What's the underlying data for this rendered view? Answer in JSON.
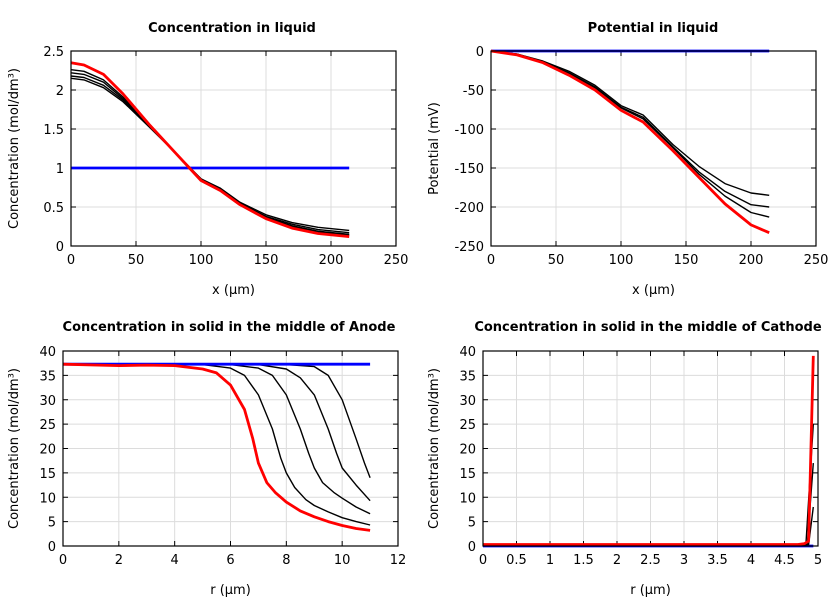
{
  "chart_data": [
    {
      "type": "line",
      "title": "Concentration in liquid",
      "xlabel": "x (µm)",
      "ylabel": "Concentration (mol/dm³)",
      "xlim": [
        0,
        250
      ],
      "ylim": [
        0,
        2.5
      ],
      "xticks": [
        "0",
        "50",
        "100",
        "150",
        "200",
        "250"
      ],
      "yticks": [
        "0",
        "0.5",
        "1",
        "1.5",
        "2",
        "2.5"
      ],
      "grid": true,
      "series": [
        {
          "color": "#000000",
          "points": [
            [
              0,
              2.15
            ],
            [
              10,
              2.13
            ],
            [
              25,
              2.03
            ],
            [
              40,
              1.85
            ],
            [
              60,
              1.53
            ],
            [
              80,
              1.2
            ],
            [
              100,
              0.86
            ],
            [
              115,
              0.74
            ],
            [
              130,
              0.56
            ],
            [
              150,
              0.4
            ],
            [
              170,
              0.3
            ],
            [
              190,
              0.24
            ],
            [
              214,
              0.2
            ]
          ]
        },
        {
          "color": "#000000",
          "points": [
            [
              0,
              2.18
            ],
            [
              10,
              2.16
            ],
            [
              25,
              2.06
            ],
            [
              40,
              1.87
            ],
            [
              60,
              1.54
            ],
            [
              80,
              1.2
            ],
            [
              100,
              0.86
            ],
            [
              115,
              0.73
            ],
            [
              130,
              0.55
            ],
            [
              150,
              0.38
            ],
            [
              170,
              0.28
            ],
            [
              190,
              0.21
            ],
            [
              214,
              0.17
            ]
          ]
        },
        {
          "color": "#000000",
          "points": [
            [
              0,
              2.22
            ],
            [
              10,
              2.2
            ],
            [
              25,
              2.1
            ],
            [
              40,
              1.89
            ],
            [
              60,
              1.54
            ],
            [
              80,
              1.2
            ],
            [
              100,
              0.85
            ],
            [
              115,
              0.73
            ],
            [
              130,
              0.54
            ],
            [
              150,
              0.37
            ],
            [
              170,
              0.26
            ],
            [
              190,
              0.19
            ],
            [
              214,
              0.15
            ]
          ]
        },
        {
          "color": "#000000",
          "points": [
            [
              0,
              2.26
            ],
            [
              10,
              2.24
            ],
            [
              25,
              2.13
            ],
            [
              40,
              1.91
            ],
            [
              60,
              1.55
            ],
            [
              80,
              1.2
            ],
            [
              100,
              0.85
            ],
            [
              115,
              0.72
            ],
            [
              130,
              0.54
            ],
            [
              150,
              0.36
            ],
            [
              170,
              0.25
            ],
            [
              190,
              0.18
            ],
            [
              214,
              0.14
            ]
          ]
        },
        {
          "color": "#0000ff",
          "points": [
            [
              0,
              1
            ],
            [
              214,
              1
            ]
          ]
        },
        {
          "color": "#ff0000",
          "points": [
            [
              0,
              2.35
            ],
            [
              10,
              2.32
            ],
            [
              25,
              2.2
            ],
            [
              40,
              1.95
            ],
            [
              60,
              1.56
            ],
            [
              80,
              1.2
            ],
            [
              100,
              0.84
            ],
            [
              115,
              0.71
            ],
            [
              130,
              0.53
            ],
            [
              150,
              0.35
            ],
            [
              170,
              0.23
            ],
            [
              190,
              0.16
            ],
            [
              214,
              0.12
            ]
          ]
        }
      ]
    },
    {
      "type": "line",
      "title": "Potential in liquid",
      "xlabel": "x (µm)",
      "ylabel": "Potential (mV)",
      "xlim": [
        0,
        250
      ],
      "ylim": [
        -250,
        0
      ],
      "xticks": [
        "0",
        "50",
        "100",
        "150",
        "200",
        "250"
      ],
      "yticks": [
        "-250",
        "-200",
        "-150",
        "-100",
        "-50",
        "0"
      ],
      "grid": true,
      "series": [
        {
          "color": "#000000",
          "points": [
            [
              0,
              0
            ],
            [
              20,
              -4
            ],
            [
              40,
              -13
            ],
            [
              60,
              -26
            ],
            [
              80,
              -44
            ],
            [
              100,
              -70
            ],
            [
              117,
              -82
            ],
            [
              140,
              -120
            ],
            [
              160,
              -148
            ],
            [
              180,
              -170
            ],
            [
              200,
              -182
            ],
            [
              214,
              -185
            ]
          ]
        },
        {
          "color": "#000000",
          "points": [
            [
              0,
              0
            ],
            [
              20,
              -4
            ],
            [
              40,
              -14
            ],
            [
              60,
              -28
            ],
            [
              80,
              -46
            ],
            [
              100,
              -72
            ],
            [
              117,
              -85
            ],
            [
              140,
              -123
            ],
            [
              160,
              -155
            ],
            [
              180,
              -180
            ],
            [
              200,
              -197
            ],
            [
              214,
              -200
            ]
          ]
        },
        {
          "color": "#000000",
          "points": [
            [
              0,
              0
            ],
            [
              20,
              -5
            ],
            [
              40,
              -14
            ],
            [
              60,
              -29
            ],
            [
              80,
              -47
            ],
            [
              100,
              -73
            ],
            [
              117,
              -87
            ],
            [
              140,
              -124
            ],
            [
              160,
              -158
            ],
            [
              180,
              -186
            ],
            [
              200,
              -207
            ],
            [
              214,
              -213
            ]
          ]
        },
        {
          "color": "#0000ff",
          "points": [
            [
              0,
              0
            ],
            [
              214,
              0
            ]
          ]
        },
        {
          "color": "#ff0000",
          "points": [
            [
              0,
              0
            ],
            [
              20,
              -5
            ],
            [
              40,
              -15
            ],
            [
              60,
              -31
            ],
            [
              80,
              -50
            ],
            [
              100,
              -76
            ],
            [
              117,
              -91
            ],
            [
              140,
              -128
            ],
            [
              160,
              -162
            ],
            [
              180,
              -196
            ],
            [
              200,
              -223
            ],
            [
              214,
              -233
            ]
          ]
        }
      ]
    },
    {
      "type": "line",
      "title": "Concentration in solid in the middle of Anode",
      "xlabel": "r (µm)",
      "ylabel": "Concentration (mol/dm³)",
      "xlim": [
        0,
        12
      ],
      "ylim": [
        0,
        40
      ],
      "xticks": [
        "0",
        "2",
        "4",
        "6",
        "8",
        "10",
        "12"
      ],
      "yticks": [
        "0",
        "5",
        "10",
        "15",
        "20",
        "25",
        "30",
        "35",
        "40"
      ],
      "grid": true,
      "series": [
        {
          "color": "#000000",
          "points": [
            [
              0,
              37.3
            ],
            [
              5,
              37.2
            ],
            [
              6,
              36.5
            ],
            [
              6.5,
              35
            ],
            [
              7,
              31
            ],
            [
              7.5,
              24
            ],
            [
              7.8,
              18
            ],
            [
              8,
              15
            ],
            [
              8.3,
              12
            ],
            [
              8.7,
              9.5
            ],
            [
              9,
              8.3
            ],
            [
              9.5,
              7
            ],
            [
              10,
              5.8
            ],
            [
              10.5,
              5
            ],
            [
              11,
              4.3
            ]
          ]
        },
        {
          "color": "#000000",
          "points": [
            [
              0,
              37.3
            ],
            [
              6,
              37.2
            ],
            [
              7,
              36.5
            ],
            [
              7.5,
              35
            ],
            [
              8,
              31
            ],
            [
              8.5,
              24
            ],
            [
              8.8,
              19
            ],
            [
              9,
              16
            ],
            [
              9.3,
              13
            ],
            [
              9.7,
              11
            ],
            [
              10,
              9.8
            ],
            [
              10.5,
              8
            ],
            [
              11,
              6.6
            ]
          ]
        },
        {
          "color": "#000000",
          "points": [
            [
              0,
              37.3
            ],
            [
              7,
              37.2
            ],
            [
              8,
              36.3
            ],
            [
              8.5,
              34.5
            ],
            [
              9,
              31
            ],
            [
              9.5,
              24
            ],
            [
              9.8,
              19
            ],
            [
              10,
              16
            ],
            [
              10.5,
              12.5
            ],
            [
              11,
              9.3
            ]
          ]
        },
        {
          "color": "#000000",
          "points": [
            [
              0,
              37.3
            ],
            [
              8,
              37.2
            ],
            [
              9,
              36.8
            ],
            [
              9.5,
              35
            ],
            [
              10,
              30
            ],
            [
              10.5,
              22
            ],
            [
              10.8,
              17
            ],
            [
              11,
              14
            ]
          ]
        },
        {
          "color": "#0000ff",
          "points": [
            [
              0,
              37.3
            ],
            [
              11,
              37.3
            ]
          ]
        },
        {
          "color": "#ff0000",
          "points": [
            [
              0,
              37.3
            ],
            [
              2,
              37.0
            ],
            [
              3,
              37.1
            ],
            [
              4,
              37.0
            ],
            [
              5,
              36.3
            ],
            [
              5.5,
              35.5
            ],
            [
              6,
              33
            ],
            [
              6.5,
              28
            ],
            [
              6.8,
              22
            ],
            [
              7,
              17
            ],
            [
              7.3,
              13
            ],
            [
              7.6,
              11
            ],
            [
              8,
              9
            ],
            [
              8.5,
              7.2
            ],
            [
              9,
              6
            ],
            [
              9.5,
              5
            ],
            [
              10,
              4.2
            ],
            [
              10.5,
              3.6
            ],
            [
              11,
              3.2
            ]
          ]
        }
      ]
    },
    {
      "type": "line",
      "title": "Concentration in solid in the middle of Cathode",
      "xlabel": "r (µm)",
      "ylabel": "Concentration (mol/dm³)",
      "xlim": [
        0,
        5
      ],
      "ylim": [
        0,
        40
      ],
      "xticks": [
        "0",
        "0.5",
        "1",
        "1.5",
        "2",
        "2.5",
        "3",
        "3.5",
        "4",
        "4.5",
        "5"
      ],
      "yticks": [
        "0",
        "5",
        "10",
        "15",
        "20",
        "25",
        "30",
        "35",
        "40"
      ],
      "grid": true,
      "series": [
        {
          "color": "#0000ff",
          "points": [
            [
              0,
              0
            ],
            [
              4.93,
              0
            ]
          ]
        },
        {
          "color": "#000000",
          "points": [
            [
              0,
              0.3
            ],
            [
              4.82,
              0.3
            ],
            [
              4.93,
              25
            ]
          ]
        },
        {
          "color": "#000000",
          "points": [
            [
              0,
              0.3
            ],
            [
              4.84,
              0.3
            ],
            [
              4.93,
              17
            ]
          ]
        },
        {
          "color": "#000000",
          "points": [
            [
              0,
              0.3
            ],
            [
              4.86,
              0.3
            ],
            [
              4.93,
              8
            ]
          ]
        },
        {
          "color": "#ff0000",
          "points": [
            [
              0,
              0.3
            ],
            [
              4.7,
              0.3
            ],
            [
              4.8,
              0.5
            ],
            [
              4.86,
              1
            ],
            [
              4.93,
              39
            ]
          ]
        }
      ]
    }
  ]
}
